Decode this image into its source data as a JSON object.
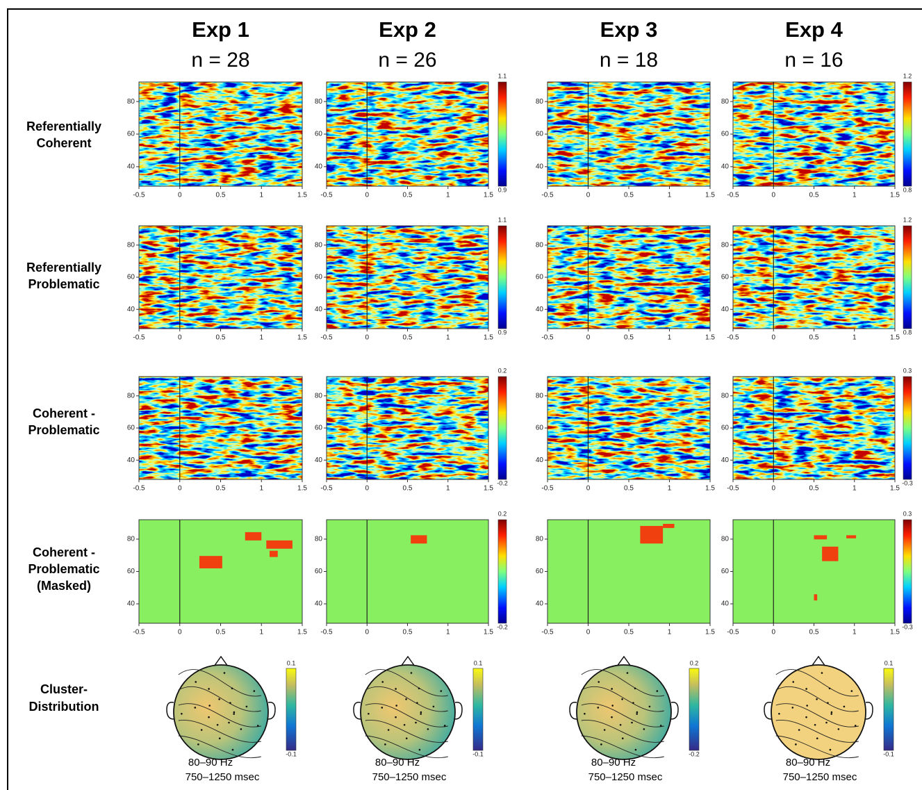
{
  "columns": [
    {
      "title": "Exp 1",
      "sample": "n = 28",
      "topomap": {
        "max": 0.1,
        "min": -0.1,
        "band": "80–90 Hz",
        "window": "750–1250 msec"
      }
    },
    {
      "title": "Exp 2",
      "sample": "n = 26",
      "topomap": {
        "max": 0.1,
        "min": -0.1,
        "band": "80–90 Hz",
        "window": "750–1250 msec"
      }
    },
    {
      "title": "Exp 3",
      "sample": "n = 18",
      "topomap": {
        "max": 0.2,
        "min": -0.2,
        "band": "80–90 Hz",
        "window": "750–1250 msec"
      }
    },
    {
      "title": "Exp 4",
      "sample": "n = 16",
      "topomap": {
        "max": 0.1,
        "min": -0.1,
        "band": "80–90 Hz",
        "window": "750–1250 msec"
      }
    }
  ],
  "rows": [
    {
      "label": [
        "Referentially",
        "Coherent"
      ],
      "colorbars": [
        {
          "max": 1.1,
          "min": 0.9
        },
        {
          "max": 1.2,
          "min": 0.8
        }
      ]
    },
    {
      "label": [
        "Referentially",
        "Problematic"
      ],
      "colorbars": [
        {
          "max": 1.1,
          "min": 0.9
        },
        {
          "max": 1.2,
          "min": 0.8
        }
      ]
    },
    {
      "label": [
        "Coherent -",
        "Problematic"
      ],
      "colorbars": [
        {
          "max": 0.2,
          "min": -0.2
        },
        {
          "max": 0.3,
          "min": -0.3
        }
      ]
    },
    {
      "label": [
        "Coherent -",
        "Problematic",
        "(Masked)"
      ],
      "colorbars": [
        {
          "max": 0.2,
          "min": -0.2
        },
        {
          "max": 0.3,
          "min": -0.3
        }
      ]
    }
  ],
  "topomap_row_label": [
    "Cluster-",
    "Distribution"
  ],
  "axes": {
    "xlim": [
      -0.5,
      1.5
    ],
    "xticks": [
      -0.5,
      0,
      0.5,
      1,
      1.5
    ],
    "ylim": [
      28,
      92
    ],
    "yticks": [
      40,
      60,
      80
    ]
  }
}
